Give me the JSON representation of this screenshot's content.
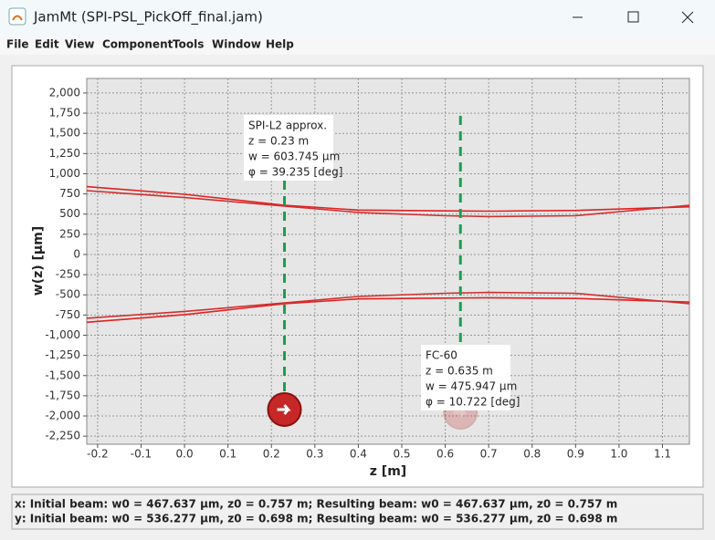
{
  "window_title": "JamMt (SPI-PSL_PickOff_final.jam)",
  "menu": [
    "File",
    "Edit",
    "View",
    "Component",
    "Tools",
    "Window",
    "Help"
  ],
  "chart_data": {
    "type": "line",
    "xlabel": "z [m]",
    "ylabel": "w(z) [µm]",
    "xlim": [
      -0.225,
      1.162
    ],
    "ylim": [
      -2350,
      2180
    ],
    "xticks": [
      -0.2,
      -0.1,
      {
        "value": 0,
        "label": "0.0"
      },
      0.1,
      0.2,
      0.3,
      0.4,
      0.5,
      0.6,
      0.7,
      0.8,
      0.9,
      {
        "value": 1,
        "label": "1.0"
      },
      1.1
    ],
    "yticks": [
      {
        "value": 2000,
        "label": "2,000"
      },
      {
        "value": 1750,
        "label": "1,750"
      },
      {
        "value": 1500,
        "label": "1,500"
      },
      {
        "value": 1250,
        "label": "1,250"
      },
      {
        "value": 1000,
        "label": "1,000"
      },
      750,
      500,
      250,
      0,
      -250,
      -500,
      -750,
      {
        "value": -1000,
        "label": "-1,000"
      },
      {
        "value": -1250,
        "label": "-1,250"
      },
      {
        "value": -1500,
        "label": "-1,500"
      },
      {
        "value": -1750,
        "label": "-1,750"
      },
      {
        "value": -2000,
        "label": "-2,000"
      },
      {
        "value": -2250,
        "label": "-2,250"
      }
    ],
    "grid": true,
    "x": [
      -0.225,
      0,
      0.23,
      0.4,
      0.6,
      0.7,
      0.9,
      1.162
    ],
    "series": [
      {
        "color": "#e02020",
        "values": [
          840,
          745,
          610,
          550,
          540,
          536,
          545,
          590
        ]
      },
      {
        "color": "#d03030",
        "values": [
          790,
          705,
          600,
          520,
          480,
          470,
          480,
          610
        ]
      },
      {
        "color": "#e02020",
        "values": [
          -840,
          -745,
          -610,
          -550,
          -540,
          -536,
          -545,
          -590
        ]
      },
      {
        "color": "#d03030",
        "values": [
          -790,
          -705,
          -600,
          -520,
          -480,
          -470,
          -480,
          -610
        ]
      }
    ],
    "components": [
      {
        "z": 0.23,
        "lines": [
          "SPI-L2 approx.",
          "z = 0.23 m",
          "w = 603.745 µm",
          "φ = 39.235 [deg]"
        ]
      },
      {
        "z": 0.635,
        "lines": [
          "FC-60",
          "z = 0.635 m",
          "w = 475.947 µm",
          "φ = 10.722 [deg]"
        ]
      }
    ]
  },
  "status": [
    "x: Initial beam: w0 = 467.637 µm, z0 = 0.757 m; Resulting beam: w0 = 467.637 µm, z0 = 0.757 m",
    "y: Initial beam: w0 = 536.277 µm, z0 = 0.698 m; Resulting beam: w0 = 536.277 µm, z0 = 0.698 m"
  ]
}
